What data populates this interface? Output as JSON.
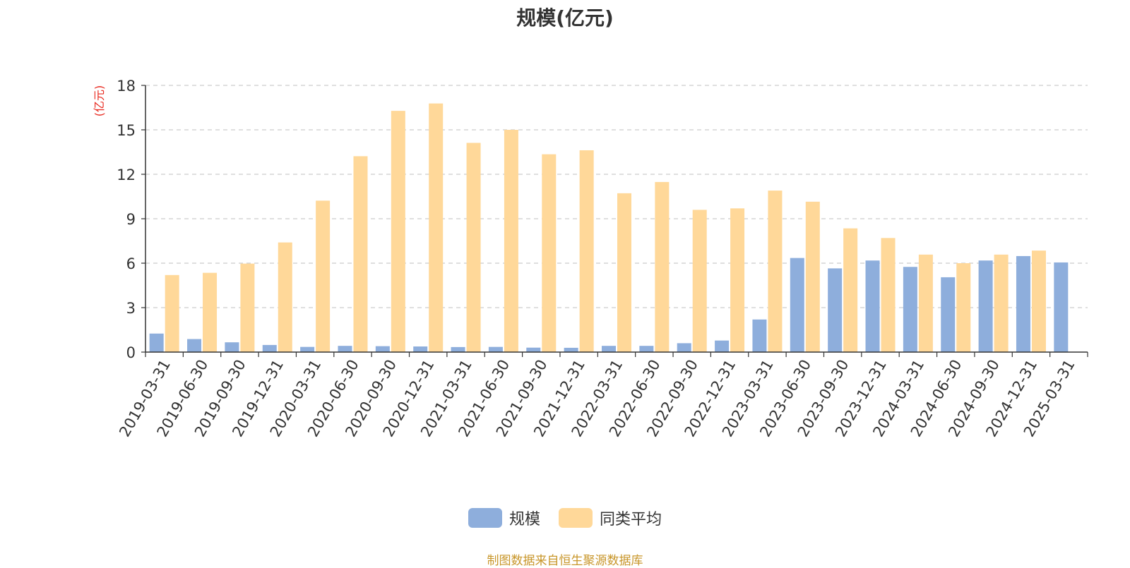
{
  "chart_data": {
    "type": "bar",
    "title": "规模(亿元)",
    "ylabel": "(亿元)",
    "ylim": [
      0,
      18
    ],
    "yticks": [
      0,
      3,
      6,
      9,
      12,
      15,
      18
    ],
    "grid": true,
    "legend_position": "bottom",
    "categories": [
      "2019-03-31",
      "2019-06-30",
      "2019-09-30",
      "2019-12-31",
      "2020-03-31",
      "2020-06-30",
      "2020-09-30",
      "2020-12-31",
      "2021-03-31",
      "2021-06-30",
      "2021-09-30",
      "2021-12-31",
      "2022-03-31",
      "2022-06-30",
      "2022-09-30",
      "2022-12-31",
      "2023-03-31",
      "2023-06-30",
      "2023-09-30",
      "2023-12-31",
      "2024-03-31",
      "2024-06-30",
      "2024-09-30",
      "2024-12-31",
      "2025-03-31"
    ],
    "series": [
      {
        "name": "规模",
        "color": "#8eaedc",
        "values": [
          1.25,
          0.88,
          0.66,
          0.48,
          0.35,
          0.42,
          0.4,
          0.38,
          0.34,
          0.35,
          0.3,
          0.29,
          0.42,
          0.42,
          0.6,
          0.78,
          2.2,
          6.35,
          5.65,
          6.18,
          5.75,
          5.05,
          6.18,
          6.48,
          6.05
        ]
      },
      {
        "name": "同类平均",
        "color": "#ffd899",
        "values": [
          5.2,
          5.35,
          5.97,
          7.4,
          10.22,
          13.22,
          16.28,
          16.78,
          14.12,
          15.0,
          13.35,
          13.62,
          10.72,
          11.48,
          9.6,
          9.7,
          10.9,
          10.15,
          8.35,
          7.7,
          6.58,
          6.0,
          6.58,
          6.85,
          null
        ]
      }
    ]
  },
  "source_note": "制图数据来自恒生聚源数据库"
}
